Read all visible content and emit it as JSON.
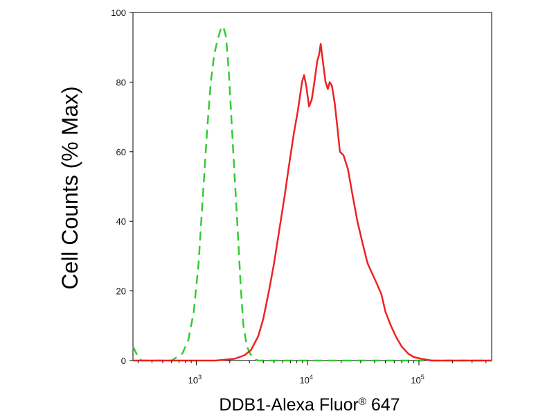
{
  "chart_data": {
    "type": "line",
    "title": "",
    "xlabel": "DDB1-Alexa Fluor",
    "xlabel_superscript": "®",
    "xlabel_suffix": " 647",
    "ylabel": "Cell Counts (% Max)",
    "x_scale": "log",
    "xlim": [
      270,
      450000
    ],
    "ylim": [
      0,
      100
    ],
    "x_ticks": [
      {
        "value": 1000,
        "base": "10",
        "exp": "3"
      },
      {
        "value": 10000,
        "base": "10",
        "exp": "4"
      },
      {
        "value": 100000,
        "base": "10",
        "exp": "5"
      }
    ],
    "y_ticks": [
      0,
      20,
      40,
      60,
      80,
      100
    ],
    "grid": false,
    "series": [
      {
        "style": "dashed",
        "color": "#33cc33",
        "points": [
          [
            270,
            4
          ],
          [
            290,
            2
          ],
          [
            320,
            0
          ],
          [
            600,
            0
          ],
          [
            750,
            2
          ],
          [
            850,
            6
          ],
          [
            950,
            14
          ],
          [
            1050,
            28
          ],
          [
            1150,
            48
          ],
          [
            1250,
            66
          ],
          [
            1350,
            80
          ],
          [
            1450,
            88
          ],
          [
            1550,
            92
          ],
          [
            1650,
            95
          ],
          [
            1750,
            96
          ],
          [
            1850,
            93
          ],
          [
            1950,
            84
          ],
          [
            2050,
            72
          ],
          [
            2200,
            54
          ],
          [
            2350,
            38
          ],
          [
            2500,
            22
          ],
          [
            2650,
            10
          ],
          [
            2850,
            4
          ],
          [
            3050,
            2
          ],
          [
            3300,
            0.5
          ],
          [
            3600,
            0
          ],
          [
            450000,
            0
          ]
        ]
      },
      {
        "style": "solid",
        "color": "#ee2222",
        "points": [
          [
            270,
            0
          ],
          [
            1500,
            0
          ],
          [
            2200,
            0.5
          ],
          [
            2700,
            1.5
          ],
          [
            3100,
            3
          ],
          [
            3600,
            7
          ],
          [
            4000,
            12
          ],
          [
            4500,
            20
          ],
          [
            5000,
            28
          ],
          [
            5600,
            38
          ],
          [
            6200,
            47
          ],
          [
            6800,
            56
          ],
          [
            7500,
            65
          ],
          [
            8200,
            72
          ],
          [
            8900,
            80
          ],
          [
            9300,
            82
          ],
          [
            9700,
            79
          ],
          [
            10300,
            73
          ],
          [
            10900,
            75
          ],
          [
            11500,
            80
          ],
          [
            12200,
            86
          ],
          [
            12700,
            88
          ],
          [
            13100,
            91
          ],
          [
            13700,
            86
          ],
          [
            14500,
            80
          ],
          [
            15200,
            78
          ],
          [
            15800,
            80
          ],
          [
            16500,
            79
          ],
          [
            17500,
            74
          ],
          [
            18500,
            67
          ],
          [
            19500,
            60
          ],
          [
            21000,
            59
          ],
          [
            23000,
            55
          ],
          [
            25500,
            47
          ],
          [
            28000,
            40
          ],
          [
            31000,
            34
          ],
          [
            34500,
            28
          ],
          [
            38000,
            25
          ],
          [
            42000,
            22
          ],
          [
            46000,
            19
          ],
          [
            50000,
            14
          ],
          [
            56000,
            10
          ],
          [
            63000,
            6.5
          ],
          [
            70000,
            4
          ],
          [
            80000,
            2
          ],
          [
            90000,
            1
          ],
          [
            105000,
            0.5
          ],
          [
            130000,
            0
          ],
          [
            450000,
            0
          ]
        ]
      }
    ]
  }
}
